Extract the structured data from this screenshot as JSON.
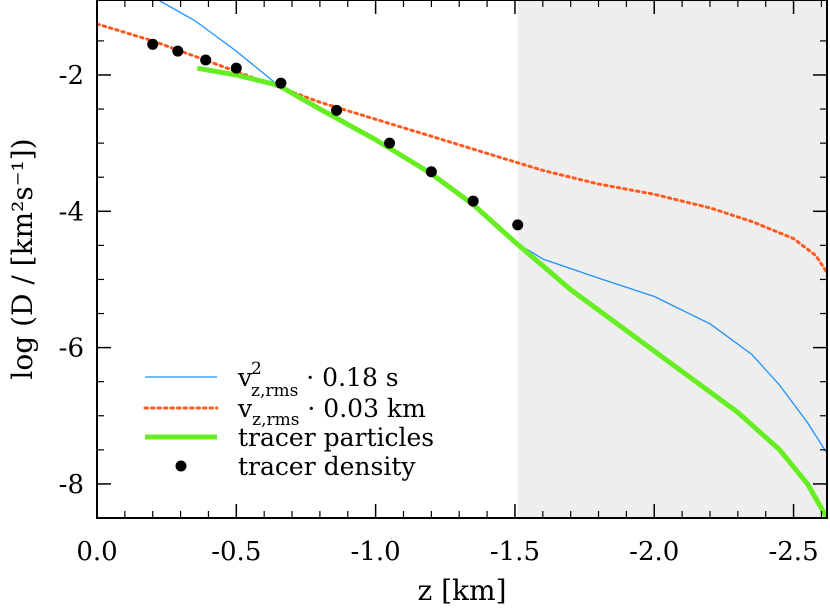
{
  "chart_data": {
    "type": "line",
    "title": "",
    "xlabel": "z [km]",
    "ylabel": "log (D / [km²s⁻¹])",
    "xlim": [
      0.0,
      -2.62
    ],
    "ylim": [
      -8.5,
      -0.9
    ],
    "x_ticks": [
      0.0,
      -0.5,
      -1.0,
      -1.5,
      -2.0,
      -2.5
    ],
    "x_tick_labels": [
      "0.0",
      "-0.5",
      "-1.0",
      "-1.5",
      "-2.0",
      "-2.5"
    ],
    "y_ticks": [
      -2,
      -4,
      -6,
      -8
    ],
    "y_tick_labels": [
      "-2",
      "-4",
      "-6",
      "-8"
    ],
    "shaded_region": {
      "x_from": -1.51,
      "x_to": -2.62,
      "color": "#eeeeee"
    },
    "legend_position": "bottom-left",
    "series": [
      {
        "name": "v_{z,rms}^2 · 0.18 s",
        "label_main": "v",
        "label_sup": "2",
        "label_sub": "z,rms",
        "label_rest": " ·  0.18 s",
        "style": "solid-thin",
        "color": "#1e90ff",
        "x": [
          -0.22,
          -0.35,
          -0.5,
          -0.65,
          -0.8,
          -1.0,
          -1.2,
          -1.4,
          -1.5,
          -1.6,
          -1.8,
          -2.0,
          -2.2,
          -2.35,
          -2.45,
          -2.55,
          -2.62
        ],
        "y": [
          -0.9,
          -1.2,
          -1.65,
          -2.15,
          -2.5,
          -2.95,
          -3.45,
          -4.05,
          -4.45,
          -4.7,
          -4.98,
          -5.25,
          -5.65,
          -6.1,
          -6.55,
          -7.1,
          -7.55
        ]
      },
      {
        "name": "v_{z,rms} · 0.03 km",
        "label_main": "v",
        "label_sup": "",
        "label_sub": "z,rms",
        "label_rest": " ·  0.03 km",
        "style": "dotted",
        "color": "#ff5a1f",
        "x": [
          0.0,
          -0.2,
          -0.4,
          -0.6,
          -0.8,
          -1.0,
          -1.2,
          -1.4,
          -1.6,
          -1.8,
          -2.0,
          -2.2,
          -2.35,
          -2.5,
          -2.58,
          -2.62
        ],
        "y": [
          -1.25,
          -1.5,
          -1.8,
          -2.1,
          -2.4,
          -2.65,
          -2.9,
          -3.15,
          -3.4,
          -3.6,
          -3.75,
          -3.95,
          -4.15,
          -4.4,
          -4.65,
          -4.9
        ]
      },
      {
        "name": "tracer particles",
        "label_main": "tracer particles",
        "label_sup": "",
        "label_sub": "",
        "label_rest": "",
        "style": "solid-thick",
        "color": "#66ee22",
        "x": [
          -0.36,
          -0.5,
          -0.65,
          -0.8,
          -1.0,
          -1.2,
          -1.35,
          -1.5,
          -1.7,
          -1.9,
          -2.1,
          -2.3,
          -2.45,
          -2.55,
          -2.62
        ],
        "y": [
          -1.9,
          -2.0,
          -2.15,
          -2.5,
          -2.95,
          -3.45,
          -3.9,
          -4.45,
          -5.15,
          -5.75,
          -6.35,
          -6.95,
          -7.5,
          -8.0,
          -8.5
        ]
      },
      {
        "name": "tracer density",
        "label_main": "tracer density",
        "label_sup": "",
        "label_sub": "",
        "label_rest": "",
        "style": "markers",
        "color": "#000000",
        "x": [
          -0.2,
          -0.29,
          -0.39,
          -0.5,
          -0.66,
          -0.86,
          -1.05,
          -1.2,
          -1.35,
          -1.51
        ],
        "y": [
          -1.55,
          -1.65,
          -1.78,
          -1.9,
          -2.12,
          -2.52,
          -3.0,
          -3.42,
          -3.85,
          -4.2
        ]
      }
    ]
  }
}
